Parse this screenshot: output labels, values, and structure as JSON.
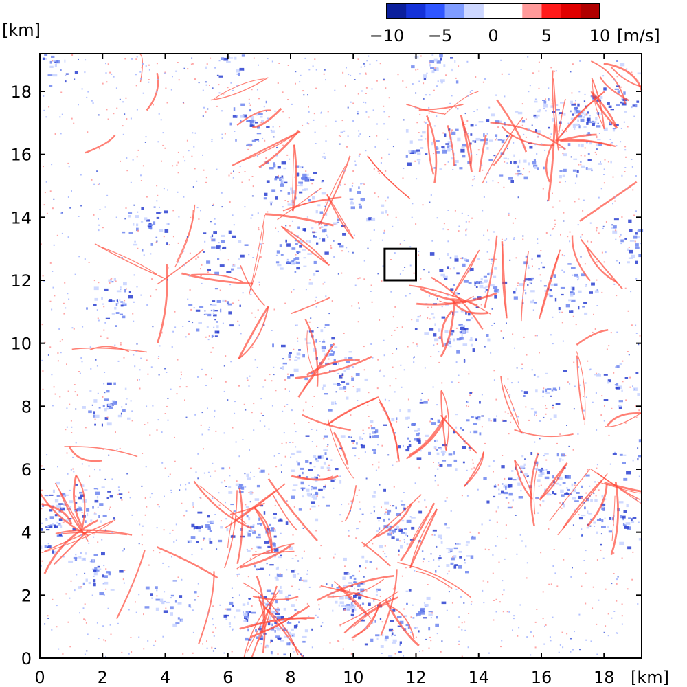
{
  "chart_data": {
    "type": "heatmap",
    "title": "",
    "x_unit_label": "[km]",
    "y_unit_label": "[km]",
    "xlim": [
      0,
      19.2
    ],
    "ylim": [
      0,
      19.2
    ],
    "x_ticks": [
      0,
      2,
      4,
      6,
      8,
      10,
      12,
      14,
      16,
      18
    ],
    "y_ticks": [
      0,
      2,
      4,
      6,
      8,
      10,
      12,
      14,
      16,
      18
    ],
    "x_tick_labels": [
      "0",
      "2",
      "4",
      "6",
      "8",
      "10",
      "12",
      "14",
      "16",
      "18"
    ],
    "y_tick_labels": [
      "0",
      "2",
      "4",
      "6",
      "8",
      "10",
      "12",
      "14",
      "16",
      "18"
    ],
    "colorbar": {
      "range": [
        -10,
        10
      ],
      "unit": "[m/s]",
      "tick_values": [
        -10,
        -5,
        0,
        5,
        10
      ],
      "tick_labels": [
        "−10",
        "−5",
        "0",
        "5",
        "10"
      ],
      "colors": [
        "#0b1f9c",
        "#1432d8",
        "#2f56ff",
        "#7f9cff",
        "#cdd7ff",
        "#ffffff",
        "#ffffff",
        "#ff9a9a",
        "#ff1a1a",
        "#e00000",
        "#b00000"
      ]
    },
    "highlight_box": {
      "x_range": [
        11,
        12
      ],
      "y_range": [
        12,
        13
      ],
      "color": "#000000"
    },
    "field_description_colors": {
      "updraft_lines": "#ff4a3a",
      "downdraft_patches": "#3a55d8",
      "background": "#ffffff"
    }
  }
}
